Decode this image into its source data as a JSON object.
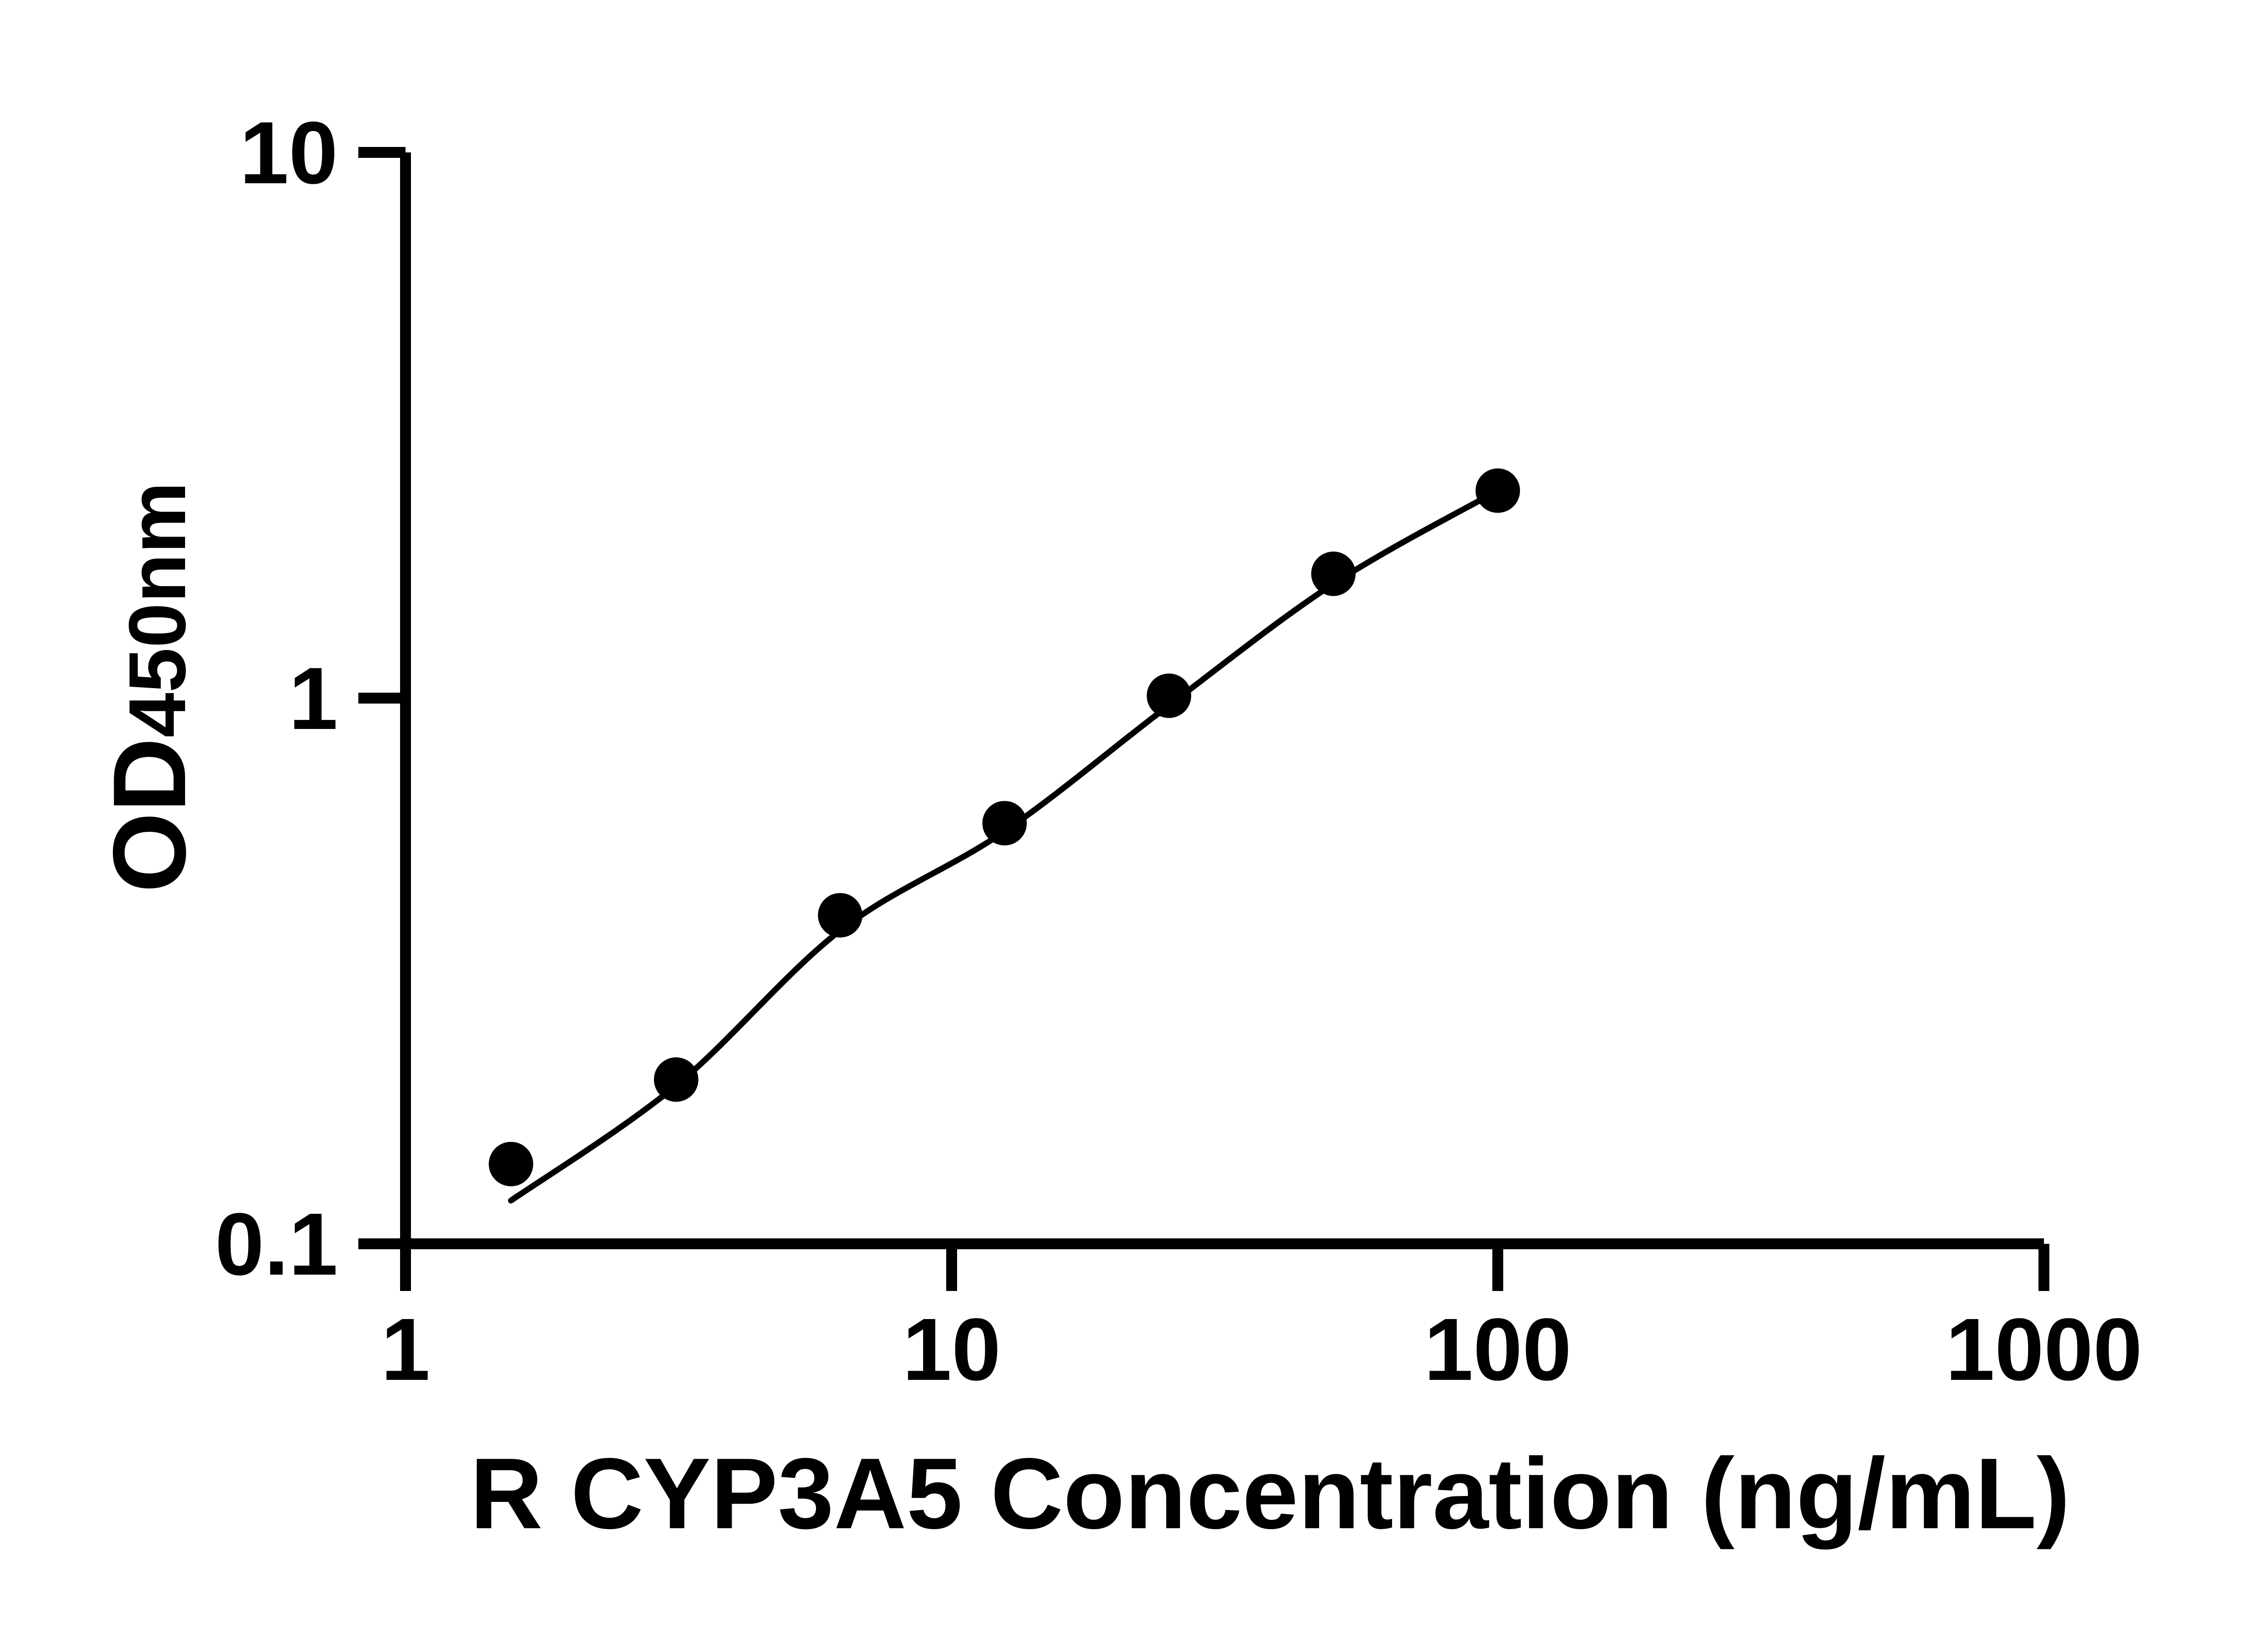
{
  "figure": {
    "background": "#ffffff",
    "ink": "#000000"
  },
  "chart_data": {
    "type": "scatter",
    "title": "",
    "xlabel": "R CYP3A5 Concentration (ng/mL)",
    "ylabel_main": "OD",
    "ylabel_sub": "450nm",
    "x_scale": "log10",
    "y_scale": "log10",
    "xlim": [
      1,
      1000
    ],
    "ylim": [
      0.1,
      10
    ],
    "grid": false,
    "legend": false,
    "x_ticks": [
      {
        "v": 1,
        "label": "1"
      },
      {
        "v": 10,
        "label": "10"
      },
      {
        "v": 100,
        "label": "100"
      },
      {
        "v": 1000,
        "label": "1000"
      }
    ],
    "y_ticks": [
      {
        "v": 0.1,
        "label": "0.1"
      },
      {
        "v": 1,
        "label": "1"
      },
      {
        "v": 10,
        "label": "10"
      }
    ],
    "series": [
      {
        "marker": "filled-circle",
        "color": "#000000",
        "points": [
          {
            "x": 1.56,
            "y": 0.14
          },
          {
            "x": 3.13,
            "y": 0.2
          },
          {
            "x": 6.25,
            "y": 0.4
          },
          {
            "x": 12.5,
            "y": 0.59
          },
          {
            "x": 25,
            "y": 1.01
          },
          {
            "x": 50,
            "y": 1.69
          },
          {
            "x": 100,
            "y": 2.4
          }
        ]
      }
    ],
    "fit_curve": {
      "color": "#000000",
      "points": [
        {
          "x": 1.56,
          "y": 0.12
        },
        {
          "x": 3.13,
          "y": 0.195
        },
        {
          "x": 6.25,
          "y": 0.375
        },
        {
          "x": 12.5,
          "y": 0.57
        },
        {
          "x": 25,
          "y": 0.97
        },
        {
          "x": 50,
          "y": 1.62
        },
        {
          "x": 100,
          "y": 2.4
        }
      ]
    }
  }
}
